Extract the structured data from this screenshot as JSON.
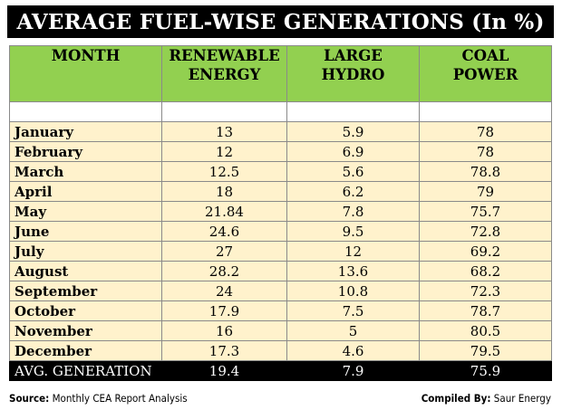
{
  "title": "AVERAGE FUEL-WISE GENERATIONS (In %)",
  "headers": {
    "month": "MONTH",
    "renewable_line1": "RENEWABLE",
    "renewable_line2": "ENERGY",
    "hydro_line1": "LARGE",
    "hydro_line2": "HYDRO",
    "coal_line1": "COAL",
    "coal_line2": "POWER"
  },
  "rows": [
    {
      "month": "January",
      "renewable": "13",
      "hydro": "5.9",
      "coal": "78"
    },
    {
      "month": "February",
      "renewable": "12",
      "hydro": "6.9",
      "coal": "78"
    },
    {
      "month": "March",
      "renewable": "12.5",
      "hydro": "5.6",
      "coal": "78.8"
    },
    {
      "month": "April",
      "renewable": "18",
      "hydro": "6.2",
      "coal": "79"
    },
    {
      "month": "May",
      "renewable": "21.84",
      "hydro": "7.8",
      "coal": "75.7"
    },
    {
      "month": "June",
      "renewable": "24.6",
      "hydro": "9.5",
      "coal": "72.8"
    },
    {
      "month": "July",
      "renewable": "27",
      "hydro": "12",
      "coal": "69.2"
    },
    {
      "month": "August",
      "renewable": "28.2",
      "hydro": "13.6",
      "coal": "68.2"
    },
    {
      "month": "September",
      "renewable": "24",
      "hydro": "10.8",
      "coal": "72.3"
    },
    {
      "month": "October",
      "renewable": "17.9",
      "hydro": "7.5",
      "coal": "78.7"
    },
    {
      "month": "November",
      "renewable": "16",
      "hydro": "5",
      "coal": "80.5"
    },
    {
      "month": "December",
      "renewable": "17.3",
      "hydro": "4.6",
      "coal": "79.5"
    }
  ],
  "average": {
    "label": "AVG. GENERATION",
    "renewable": "19.4",
    "hydro": "7.9",
    "coal": "75.9"
  },
  "footer": {
    "source_label": "Source:",
    "source_text": " Monthly CEA Report Analysis",
    "compiled_label": "Compiled By:",
    "compiled_text": " Saur Energy"
  },
  "colors": {
    "header_bg": "#92d050",
    "row_bg": "#fff2cc",
    "title_bg": "#000000"
  }
}
